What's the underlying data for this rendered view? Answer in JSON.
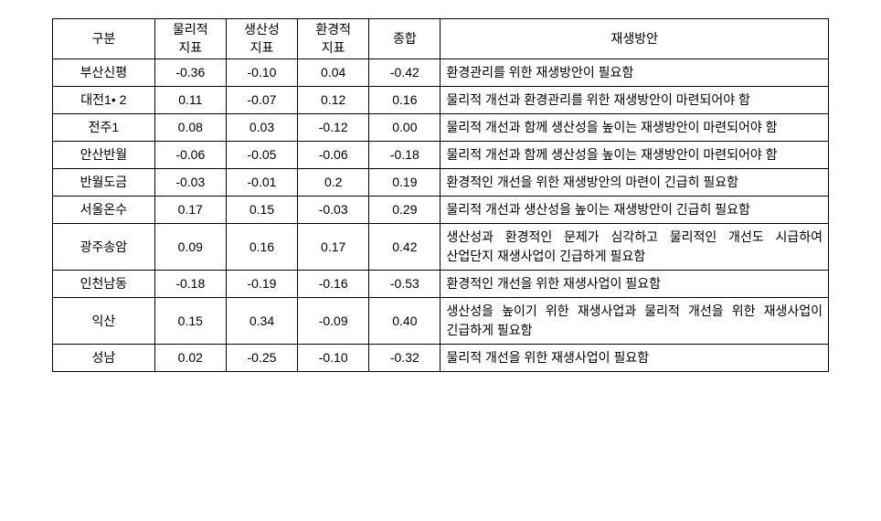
{
  "table": {
    "headers": {
      "category": "구분",
      "physical_l1": "물리적",
      "physical_l2": "지표",
      "productivity_l1": "생산성",
      "productivity_l2": "지표",
      "environmental_l1": "환경적",
      "environmental_l2": "지표",
      "total": "종합",
      "plan": "재생방안"
    },
    "rows": [
      {
        "name": "부산신평",
        "physical": "-0.36",
        "productivity": "-0.10",
        "environmental": "0.04",
        "total": "-0.42",
        "plan": "환경관리를 위한 재생방안이 필요함"
      },
      {
        "name": "대전1• 2",
        "physical": "0.11",
        "productivity": "-0.07",
        "environmental": "0.12",
        "total": "0.16",
        "plan": "물리적 개선과 환경관리를 위한 재생방안이 마련되어야 함"
      },
      {
        "name": "전주1",
        "physical": "0.08",
        "productivity": "0.03",
        "environmental": "-0.12",
        "total": "0.00",
        "plan": "물리적 개선과 함께 생산성을 높이는 재생방안이 마련되어야 함"
      },
      {
        "name": "안산반월",
        "physical": "-0.06",
        "productivity": "-0.05",
        "environmental": "-0.06",
        "total": "-0.18",
        "plan": "물리적 개선과 함께 생산성을 높이는 재생방안이 마련되어야 함"
      },
      {
        "name": "반월도금",
        "physical": "-0.03",
        "productivity": "-0.01",
        "environmental": "0.2",
        "total": "0.19",
        "plan": "환경적인 개선을 위한 재생방안의 마련이 긴급히 필요함"
      },
      {
        "name": "서울온수",
        "physical": "0.17",
        "productivity": "0.15",
        "environmental": "-0.03",
        "total": "0.29",
        "plan": "물리적 개선과 생산성을 높이는 재생방안이 긴급히 필요함"
      },
      {
        "name": "광주송암",
        "physical": "0.09",
        "productivity": "0.16",
        "environmental": "0.17",
        "total": "0.42",
        "plan": "생산성과 환경적인 문제가 심각하고 물리적인 개선도 시급하여 산업단지 재생사업이 긴급하게 필요함"
      },
      {
        "name": "인천남동",
        "physical": "-0.18",
        "productivity": "-0.19",
        "environmental": "-0.16",
        "total": "-0.53",
        "plan": "환경적인 개선을 위한 재생사업이 필요함"
      },
      {
        "name": "익산",
        "physical": "0.15",
        "productivity": "0.34",
        "environmental": "-0.09",
        "total": "0.40",
        "plan": "생산성을 높이기 위한 재생사업과 물리적 개선을 위한 재생사업이 긴급하게 필요함"
      },
      {
        "name": "성남",
        "physical": "0.02",
        "productivity": "-0.25",
        "environmental": "-0.10",
        "total": "-0.32",
        "plan": "물리적 개선을 위한 재생사업이 필요함"
      }
    ]
  }
}
